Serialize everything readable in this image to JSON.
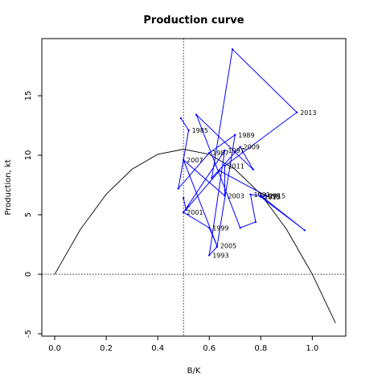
{
  "chart_data": {
    "type": "line",
    "title": "Production curve",
    "xlabel": "B/K",
    "ylabel": "Production, kt",
    "xlim": [
      -0.05,
      1.13
    ],
    "ylim": [
      -5.2,
      19.8
    ],
    "xticks": [
      "0.0",
      "0.2",
      "0.4",
      "0.6",
      "0.8",
      "1.0"
    ],
    "yticks": [
      "-5",
      "0",
      "5",
      "10",
      "15"
    ],
    "grid": false,
    "reference_lines": {
      "vertical_x": 0.5,
      "horizontal_y": 0
    },
    "production_curve": {
      "x": [
        0,
        0.1,
        0.2,
        0.3,
        0.4,
        0.5,
        0.6,
        0.7,
        0.8,
        0.9,
        1.0,
        1.09
      ],
      "y": [
        0,
        3.78,
        6.72,
        8.82,
        10.08,
        10.5,
        10.08,
        8.82,
        6.72,
        3.78,
        0,
        -4.1
      ]
    },
    "series": [
      {
        "name": "",
        "color": "#0000ff",
        "points": [
          {
            "x": 0.49,
            "y": 13.1,
            "label": ""
          },
          {
            "x": 0.52,
            "y": 12.1,
            "label": "1985"
          },
          {
            "x": 0.48,
            "y": 7.2,
            "label": ""
          },
          {
            "x": 0.6,
            "y": 10.2,
            "label": "1987"
          },
          {
            "x": 0.7,
            "y": 11.7,
            "label": "1989"
          },
          {
            "x": 0.63,
            "y": 2.3,
            "label": ""
          },
          {
            "x": 0.6,
            "y": 1.6,
            "label": "1993"
          },
          {
            "x": 0.66,
            "y": 10.4,
            "label": "1997"
          },
          {
            "x": 0.5,
            "y": 5.2,
            "label": "2001"
          },
          {
            "x": 0.6,
            "y": 3.9,
            "label": "1999"
          },
          {
            "x": 0.63,
            "y": 2.4,
            "label": "2005"
          },
          {
            "x": 0.5,
            "y": 9.6,
            "label": "2007"
          },
          {
            "x": 0.66,
            "y": 6.6,
            "label": "2003"
          },
          {
            "x": 0.66,
            "y": 9.1,
            "label": "2011"
          },
          {
            "x": 0.94,
            "y": 13.6,
            "label": "2013"
          },
          {
            "x": 0.69,
            "y": 18.9,
            "label": ""
          },
          {
            "x": 0.61,
            "y": 8.1,
            "label": ""
          },
          {
            "x": 0.72,
            "y": 10.7,
            "label": "2009"
          },
          {
            "x": 0.77,
            "y": 8.8,
            "label": ""
          },
          {
            "x": 0.55,
            "y": 13.4,
            "label": ""
          },
          {
            "x": 0.72,
            "y": 3.9,
            "label": ""
          },
          {
            "x": 0.78,
            "y": 4.4,
            "label": ""
          },
          {
            "x": 0.76,
            "y": 6.7,
            "label": "1991"
          },
          {
            "x": 0.8,
            "y": 6.6,
            "label": "1995"
          },
          {
            "x": 0.97,
            "y": 3.7,
            "label": ""
          },
          {
            "x": 0.8,
            "y": 6.5,
            "label": "2015"
          },
          {
            "x": 0.82,
            "y": 6.6,
            "label": "2015"
          },
          {
            "x": 0.64,
            "y": 8.7,
            "label": ""
          },
          {
            "x": 0.52,
            "y": 5.7,
            "label": ""
          },
          {
            "x": 0.51,
            "y": 5.4,
            "label": ""
          },
          {
            "x": 0.5,
            "y": 6.4,
            "label": ""
          }
        ]
      }
    ]
  }
}
